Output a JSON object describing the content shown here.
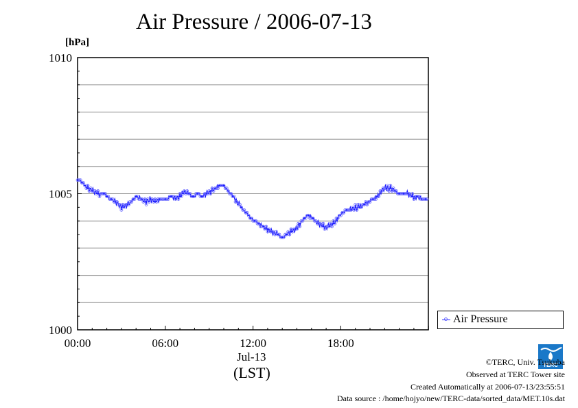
{
  "chart_data": {
    "type": "line",
    "title": "Air Pressure / 2006-07-13",
    "ylabel": "[hPa]",
    "xlabel": "(LST)",
    "x_date_label": "Jul-13",
    "ylim": [
      1000,
      1010
    ],
    "y_ticks": [
      "1000",
      "1005",
      "1010"
    ],
    "y_grid_step": 1,
    "xlim_hours": [
      0,
      23.99
    ],
    "x_ticks": [
      {
        "hour": 0,
        "label": "00:00"
      },
      {
        "hour": 6,
        "label": "06:00"
      },
      {
        "hour": 12,
        "label": "12:00"
      },
      {
        "hour": 18,
        "label": "18:00"
      }
    ],
    "grid": "horizontal",
    "legend_position": "right",
    "series": [
      {
        "name": "Air Pressure",
        "color": "#1a1aff",
        "marker_color": "#6b6bff",
        "x_hours": [
          0.0,
          0.3,
          0.7,
          1.0,
          1.4,
          1.8,
          2.0,
          2.3,
          2.6,
          3.0,
          3.4,
          3.8,
          4.0,
          4.4,
          4.7,
          5.0,
          5.3,
          5.6,
          6.0,
          6.4,
          6.7,
          7.0,
          7.3,
          7.6,
          7.9,
          8.2,
          8.5,
          8.8,
          9.1,
          9.4,
          9.7,
          10.0,
          10.3,
          10.6,
          10.9,
          11.2,
          11.5,
          11.8,
          12.1,
          12.4,
          12.7,
          13.0,
          13.3,
          13.7,
          14.0,
          14.3,
          14.6,
          14.9,
          15.2,
          15.5,
          15.8,
          16.1,
          16.5,
          16.8,
          17.2,
          17.5,
          17.8,
          18.1,
          18.4,
          18.7,
          19.0,
          19.3,
          19.6,
          19.9,
          20.2,
          20.5,
          20.8,
          21.1,
          21.4,
          21.7,
          22.0,
          22.3,
          22.6,
          22.9,
          23.2,
          23.5,
          23.8
        ],
        "values": [
          1005.5,
          1005.4,
          1005.2,
          1005.1,
          1005.0,
          1005.0,
          1004.9,
          1004.8,
          1004.7,
          1004.5,
          1004.6,
          1004.8,
          1004.9,
          1004.8,
          1004.7,
          1004.8,
          1004.7,
          1004.8,
          1004.8,
          1004.9,
          1004.8,
          1004.9,
          1005.1,
          1005.0,
          1004.9,
          1005.0,
          1004.9,
          1005.0,
          1005.1,
          1005.2,
          1005.3,
          1005.3,
          1005.1,
          1004.9,
          1004.7,
          1004.5,
          1004.3,
          1004.1,
          1004.0,
          1003.9,
          1003.8,
          1003.7,
          1003.6,
          1003.5,
          1003.4,
          1003.5,
          1003.6,
          1003.7,
          1003.9,
          1004.1,
          1004.2,
          1004.1,
          1003.9,
          1003.8,
          1003.8,
          1003.9,
          1004.1,
          1004.3,
          1004.4,
          1004.4,
          1004.5,
          1004.5,
          1004.6,
          1004.7,
          1004.8,
          1004.9,
          1005.1,
          1005.2,
          1005.2,
          1005.1,
          1005.0,
          1005.0,
          1005.0,
          1004.9,
          1004.9,
          1004.8,
          1004.8
        ]
      }
    ]
  },
  "footer": {
    "copyright": "©TERC, Univ. Tsukuba",
    "observed": "Observed at TERC Tower site",
    "created": "Created Automatically at 2006-07-13/23:55:51",
    "source": "Data source : /home/hojyo/new/TERC-data/sorted_data/MET.10s.dat"
  },
  "logo": {
    "text": "TERC",
    "color": "#1a78c8"
  }
}
